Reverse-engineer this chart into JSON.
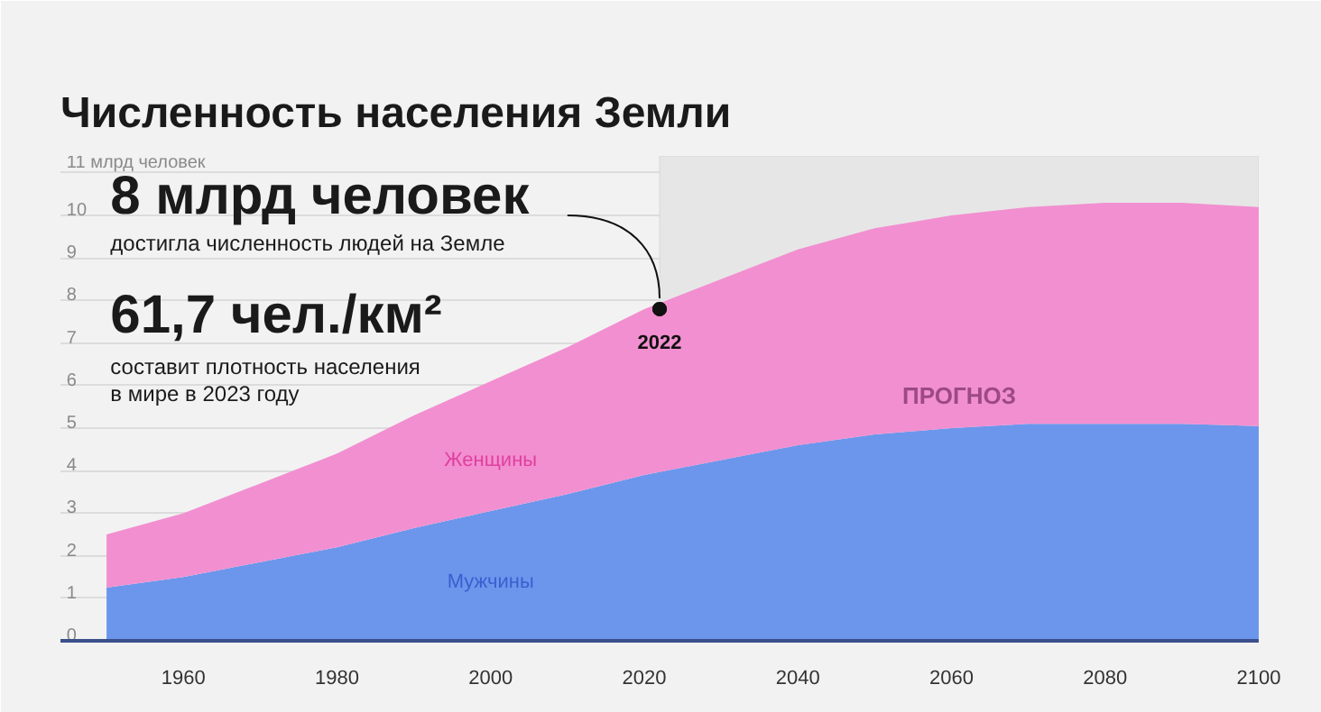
{
  "chart_data": {
    "type": "area",
    "stacked": true,
    "title": "Численность населения Земли",
    "x": [
      1950,
      1960,
      1970,
      1980,
      1990,
      2000,
      2010,
      2020,
      2030,
      2040,
      2050,
      2060,
      2070,
      2080,
      2090,
      2100
    ],
    "series": [
      {
        "name": "Мужчины",
        "color": "#6b96ec",
        "values": [
          1.25,
          1.5,
          1.85,
          2.2,
          2.65,
          3.05,
          3.45,
          3.9,
          4.25,
          4.6,
          4.85,
          5.0,
          5.1,
          5.1,
          5.1,
          5.05
        ]
      },
      {
        "name": "Женщины",
        "color": "#f28fd0",
        "values": [
          1.25,
          1.5,
          1.85,
          2.2,
          2.65,
          3.05,
          3.45,
          3.9,
          4.25,
          4.6,
          4.85,
          5.0,
          5.1,
          5.2,
          5.2,
          5.15
        ]
      }
    ],
    "xlim": [
      1944,
      2100
    ],
    "ylim": [
      0,
      11.4
    ],
    "xticks": [
      1960,
      1980,
      2000,
      2020,
      2040,
      2060,
      2080,
      2100
    ],
    "yticks": [
      0,
      1,
      2,
      3,
      4,
      5,
      6,
      7,
      8,
      9,
      10,
      {
        "value": 11,
        "label": "11 млрд человек"
      }
    ],
    "grid": "y",
    "bands": [
      {
        "axis": "x",
        "from": 2022,
        "to": 2100,
        "label": "ПРОГНОЗ",
        "color": "#e6e6e6"
      }
    ],
    "annotations": [
      {
        "text": "8 млрд человек",
        "x": 2022,
        "y": 7.8
      },
      "достигла численность людей на Земле",
      "61,7 чел./км²",
      "составит плотность населения\nв мире в 2023 году",
      {
        "text": "2022",
        "x": 2022,
        "y": 7.8
      }
    ]
  }
}
